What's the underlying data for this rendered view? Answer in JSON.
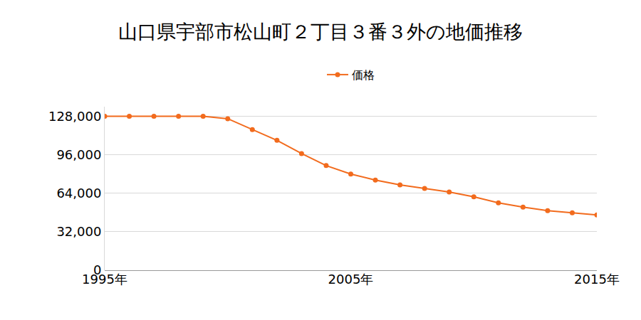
{
  "chart_data": {
    "type": "line",
    "title": "山口県宇部市松山町２丁目３番３外の地価推移",
    "x": [
      1995,
      1996,
      1997,
      1998,
      1999,
      2000,
      2001,
      2002,
      2003,
      2004,
      2005,
      2006,
      2007,
      2008,
      2009,
      2010,
      2011,
      2012,
      2013,
      2014,
      2015
    ],
    "series": [
      {
        "name": "価格",
        "color": "#f26b1d",
        "values": [
          128000,
          128000,
          128000,
          128000,
          128000,
          126000,
          117000,
          108000,
          97000,
          87000,
          80000,
          75000,
          71000,
          68000,
          65000,
          61000,
          56000,
          52500,
          49500,
          47800,
          46000
        ]
      }
    ],
    "xlim": [
      1995,
      2015
    ],
    "xticks": [
      {
        "value": 1995,
        "label": "1995年"
      },
      {
        "value": 2005,
        "label": "2005年"
      },
      {
        "value": 2015,
        "label": "2015年"
      }
    ],
    "ylim": [
      0,
      136000
    ],
    "yticks": [
      0,
      {
        "value": 32000,
        "label": "32,000"
      },
      {
        "value": 64000,
        "label": "64,000"
      },
      {
        "value": 96000,
        "label": "96,000"
      },
      {
        "value": 128000,
        "label": "128,000"
      }
    ],
    "grid": true,
    "legend": "top",
    "marker": "circle"
  }
}
